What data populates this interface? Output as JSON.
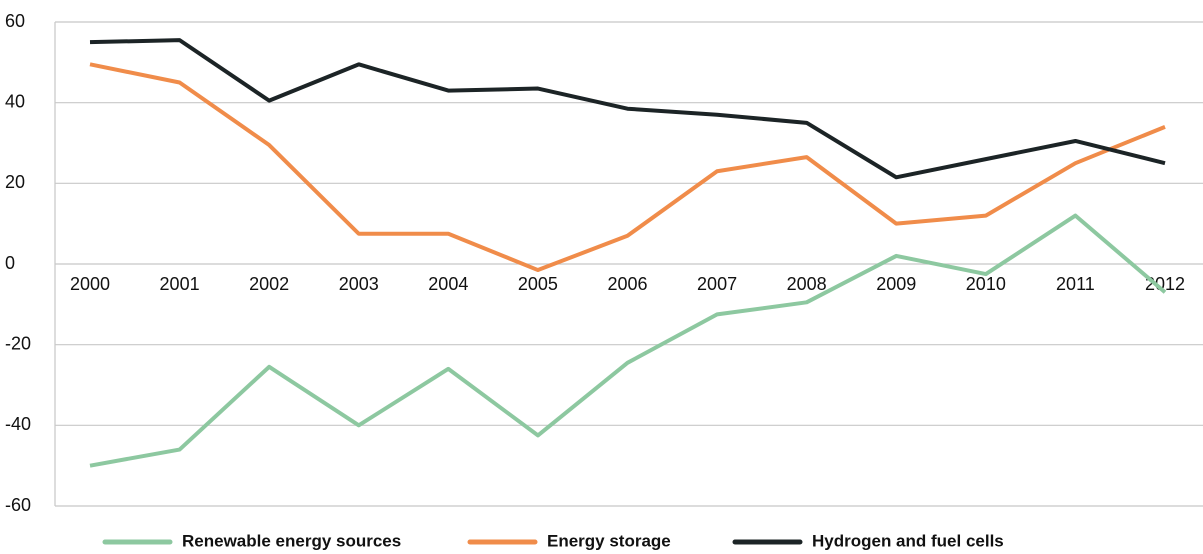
{
  "chart_data": {
    "type": "line",
    "categories": [
      "2000",
      "2001",
      "2002",
      "2003",
      "2004",
      "2005",
      "2006",
      "2007",
      "2008",
      "2009",
      "2010",
      "2011",
      "2012"
    ],
    "series": [
      {
        "name": "Renewable energy sources",
        "color": "#8dc8a0",
        "values": [
          -50,
          -46,
          -25.5,
          -40,
          -26,
          -42.5,
          -24.5,
          -12.5,
          -9.5,
          2,
          -2.5,
          12,
          -7
        ]
      },
      {
        "name": "Energy storage",
        "color": "#f08c4a",
        "values": [
          49.5,
          45,
          29.5,
          7.5,
          7.5,
          -1.5,
          7,
          23,
          26.5,
          10,
          12,
          25,
          34
        ]
      },
      {
        "name": "Hydrogen and fuel cells",
        "color": "#1c2426",
        "values": [
          55,
          55.5,
          40.5,
          49.5,
          43,
          43.5,
          38.5,
          37,
          35,
          21.5,
          26,
          30.5,
          25
        ]
      }
    ],
    "ylim": [
      -60,
      60
    ],
    "yticks": [
      -60,
      -40,
      -20,
      0,
      20,
      40,
      60
    ],
    "grid": true,
    "legend": "bottom"
  }
}
